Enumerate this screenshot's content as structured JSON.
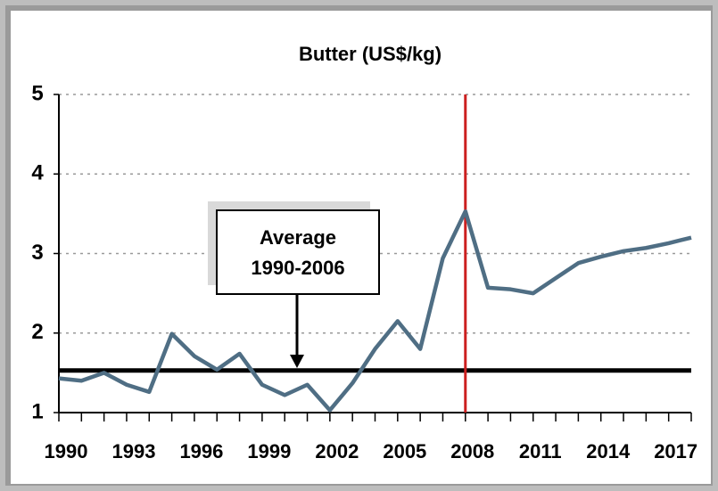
{
  "chart_data": {
    "type": "line",
    "title": "Butter (US$/kg)",
    "x": [
      1990,
      1991,
      1992,
      1993,
      1994,
      1995,
      1996,
      1997,
      1998,
      1999,
      2000,
      2001,
      2002,
      2003,
      2004,
      2005,
      2006,
      2007,
      2008,
      2009,
      2010,
      2011,
      2012,
      2013,
      2014,
      2015,
      2016,
      2017,
      2018
    ],
    "series": [
      {
        "color": "#4f6e84",
        "values": [
          1.43,
          1.4,
          1.5,
          1.35,
          1.26,
          1.99,
          1.71,
          1.54,
          1.74,
          1.35,
          1.22,
          1.35,
          1.03,
          1.37,
          1.8,
          2.15,
          1.8,
          2.94,
          3.53,
          2.57,
          2.55,
          2.5,
          2.69,
          2.88,
          2.96,
          3.03,
          3.07,
          3.13,
          3.2
        ]
      }
    ],
    "xlim": [
      1990,
      2018
    ],
    "xticks": [
      1990,
      1993,
      1996,
      1999,
      2002,
      2005,
      2008,
      2011,
      2014,
      2017
    ],
    "ylim": [
      1,
      5
    ],
    "yticks": [
      1,
      2,
      3,
      4,
      5
    ],
    "grid": true,
    "reference_line": {
      "value": 1.53,
      "color": "#000000"
    },
    "vertical_line": {
      "x": 2008,
      "color": "#cc1f1f"
    },
    "annotation": [
      "Average",
      "1990-2006"
    ]
  }
}
